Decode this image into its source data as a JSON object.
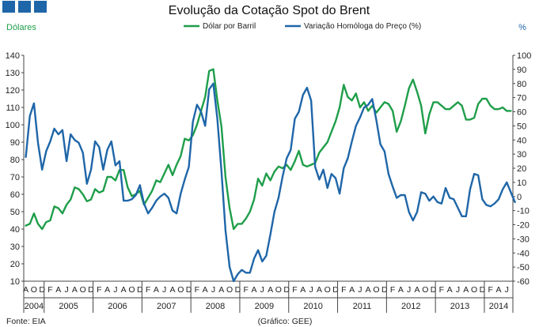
{
  "chart_data": {
    "type": "line",
    "title": "Evolução da Cotação Spot do Brent",
    "ylabel": "Dólares",
    "y2label": "%",
    "ylim": [
      10,
      140
    ],
    "y2lim": [
      -60,
      100
    ],
    "yticks": [
      10,
      20,
      30,
      40,
      50,
      60,
      70,
      80,
      90,
      100,
      110,
      120,
      130,
      140
    ],
    "y2ticks": [
      -60,
      -50,
      -40,
      -30,
      -20,
      -10,
      0,
      10,
      20,
      30,
      40,
      50,
      60,
      70,
      80,
      90,
      100
    ],
    "x_month_start": "2004-08",
    "month_letter_order": [
      "J",
      "F",
      "M",
      "A",
      "M",
      "J",
      "J",
      "A",
      "S",
      "O",
      "N",
      "D"
    ],
    "years": [
      {
        "label": "2004",
        "start": 0,
        "end": 5
      },
      {
        "label": "2005",
        "start": 5,
        "end": 17
      },
      {
        "label": "2006",
        "start": 17,
        "end": 29
      },
      {
        "label": "2007",
        "start": 29,
        "end": 41
      },
      {
        "label": "2008",
        "start": 41,
        "end": 53
      },
      {
        "label": "2009",
        "start": 53,
        "end": 65
      },
      {
        "label": "2010",
        "start": 65,
        "end": 77
      },
      {
        "label": "2011",
        "start": 77,
        "end": 89
      },
      {
        "label": "2012",
        "start": 89,
        "end": 101
      },
      {
        "label": "2013",
        "start": 101,
        "end": 113
      },
      {
        "label": "2014",
        "start": 113,
        "end": 120
      }
    ],
    "series": [
      {
        "name": "Dólar por Barril",
        "axis": "left",
        "color": "#1f9e4a",
        "values": [
          42,
          43,
          49,
          43,
          40,
          44,
          45,
          53,
          52,
          49,
          54,
          57,
          64,
          63,
          60,
          56,
          57,
          63,
          61,
          62,
          70,
          70,
          68,
          74,
          74,
          64,
          59,
          60,
          62,
          54,
          58,
          62,
          68,
          67,
          72,
          77,
          71,
          77,
          82,
          92,
          91,
          94,
          100,
          108,
          116,
          131,
          132,
          114,
          99,
          70,
          52,
          40,
          43,
          43,
          46,
          50,
          57,
          69,
          65,
          72,
          68,
          73,
          76,
          75,
          77,
          74,
          79,
          85,
          77,
          76,
          77,
          78,
          84,
          87,
          90,
          96,
          102,
          110,
          123,
          116,
          114,
          118,
          110,
          113,
          108,
          111,
          107,
          110,
          113,
          112,
          108,
          96,
          102,
          111,
          121,
          126,
          119,
          111,
          95,
          106,
          113,
          113,
          111,
          109,
          109,
          111,
          113,
          111,
          103,
          103,
          104,
          112,
          115,
          115,
          111,
          109,
          109,
          110,
          108,
          108
        ]
      },
      {
        "name": "Variação Homóloga do Preço (%)",
        "axis": "right",
        "color": "#1f66a8",
        "values": [
          28,
          57,
          66,
          38,
          19,
          32,
          39,
          48,
          44,
          47,
          25,
          44,
          40,
          38,
          31,
          9,
          19,
          39,
          35,
          19,
          33,
          39,
          22,
          25,
          -3,
          -3,
          -2,
          1,
          8,
          -5,
          -12,
          -8,
          -3,
          0,
          2,
          -1,
          -10,
          -12,
          2,
          12,
          21,
          53,
          65,
          60,
          50,
          76,
          80,
          55,
          18,
          -24,
          -50,
          -60,
          -55,
          -52,
          -54,
          -54,
          -44,
          -38,
          -46,
          -42,
          -27,
          -11,
          -1,
          14,
          27,
          33,
          55,
          60,
          72,
          77,
          68,
          21,
          12,
          19,
          6,
          16,
          13,
          2,
          20,
          27,
          39,
          50,
          56,
          63,
          65,
          69,
          54,
          37,
          32,
          16,
          7,
          -1,
          1,
          1,
          -11,
          -17,
          -11,
          3,
          2,
          -3,
          0,
          -4,
          -5,
          6,
          -1,
          -2,
          -8,
          -14,
          -14,
          5,
          16,
          15,
          -2,
          -6,
          -7,
          -5,
          -2,
          5,
          10,
          3,
          -4
        ]
      }
    ]
  },
  "legend": [
    {
      "label": "Dólar por Barril",
      "color": "#1f9e4a"
    },
    {
      "label": "Variação Homóloga do Preço (%)",
      "color": "#1f66a8"
    }
  ],
  "footer": {
    "source": "Fonte: EIA",
    "credit": "(Gráfico: GEE)"
  },
  "colors": {
    "logo": "#1f66a8",
    "left_axis_label": "#1f9e4a",
    "right_axis_label": "#1f66a8"
  }
}
